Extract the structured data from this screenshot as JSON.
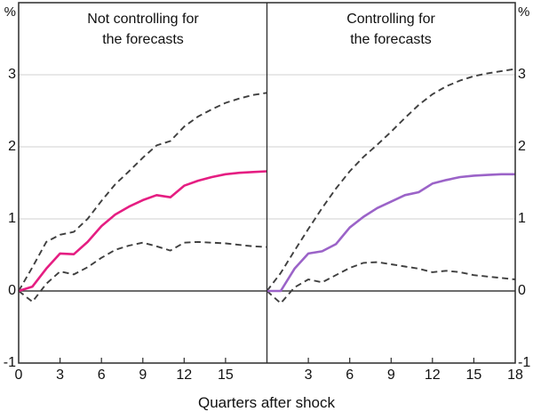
{
  "figure": {
    "x_axis_label": "Quarters after shock",
    "percent_symbol": "%",
    "y_tick_labels": [
      "3",
      "2",
      "1",
      "0",
      "-1"
    ],
    "y_tick_values": [
      3,
      2,
      1,
      0,
      -1
    ],
    "colors": {
      "response_left": "#e51e82",
      "response_right": "#9b63c8",
      "band": "#3f3f3f",
      "grid": "#d9d9d9",
      "zero_line": "#3c3c3c",
      "frame": "#2b2b2b"
    }
  },
  "chart_data": [
    {
      "type": "line",
      "title": "Not controlling for the forecasts",
      "title_line1": "Not controlling for",
      "title_line2": "the forecasts",
      "x": [
        0,
        1,
        2,
        3,
        4,
        5,
        6,
        7,
        8,
        9,
        10,
        11,
        12,
        13,
        14,
        15,
        16,
        17,
        18
      ],
      "x_tick_labels": [
        0,
        3,
        6,
        9,
        12,
        15
      ],
      "ylim": [
        -1,
        4
      ],
      "grid_values": [
        1,
        2,
        3
      ],
      "series": [
        {
          "name": "point-estimate",
          "style": "solid",
          "color": "#e51e82",
          "values": [
            0.0,
            0.06,
            0.31,
            0.52,
            0.51,
            0.68,
            0.9,
            1.06,
            1.17,
            1.26,
            1.33,
            1.3,
            1.46,
            1.53,
            1.58,
            1.62,
            1.64,
            1.65,
            1.66
          ]
        },
        {
          "name": "upper-confidence-band",
          "style": "dashed",
          "color": "#3f3f3f",
          "values": [
            0.0,
            0.33,
            0.68,
            0.78,
            0.82,
            1.0,
            1.25,
            1.48,
            1.66,
            1.85,
            2.02,
            2.08,
            2.28,
            2.42,
            2.52,
            2.61,
            2.67,
            2.72,
            2.75
          ]
        },
        {
          "name": "lower-confidence-band",
          "style": "dashed",
          "color": "#3f3f3f",
          "values": [
            0.0,
            -0.15,
            0.1,
            0.27,
            0.23,
            0.33,
            0.46,
            0.57,
            0.63,
            0.67,
            0.62,
            0.56,
            0.67,
            0.68,
            0.67,
            0.66,
            0.64,
            0.62,
            0.61
          ]
        }
      ]
    },
    {
      "type": "line",
      "title": "Controlling for the forecasts",
      "title_line1": "Controlling for",
      "title_line2": "the forecasts",
      "x": [
        0,
        1,
        2,
        3,
        4,
        5,
        6,
        7,
        8,
        9,
        10,
        11,
        12,
        13,
        14,
        15,
        16,
        17,
        18
      ],
      "x_tick_labels": [
        3,
        6,
        9,
        12,
        15,
        18
      ],
      "ylim": [
        -1,
        4
      ],
      "grid_values": [
        1,
        2,
        3
      ],
      "series": [
        {
          "name": "point-estimate",
          "style": "solid",
          "color": "#9b63c8",
          "values": [
            0.0,
            0.0,
            0.31,
            0.52,
            0.55,
            0.65,
            0.88,
            1.03,
            1.15,
            1.24,
            1.33,
            1.37,
            1.49,
            1.54,
            1.58,
            1.6,
            1.61,
            1.62,
            1.62
          ]
        },
        {
          "name": "upper-confidence-band",
          "style": "dashed",
          "color": "#3f3f3f",
          "values": [
            0.0,
            0.25,
            0.56,
            0.86,
            1.15,
            1.42,
            1.66,
            1.86,
            2.03,
            2.21,
            2.4,
            2.58,
            2.73,
            2.84,
            2.92,
            2.98,
            3.02,
            3.05,
            3.08
          ]
        },
        {
          "name": "lower-confidence-band",
          "style": "dashed",
          "color": "#3f3f3f",
          "values": [
            0.0,
            -0.17,
            0.05,
            0.16,
            0.12,
            0.22,
            0.32,
            0.39,
            0.4,
            0.37,
            0.34,
            0.31,
            0.26,
            0.28,
            0.26,
            0.22,
            0.2,
            0.18,
            0.16
          ]
        }
      ]
    }
  ]
}
